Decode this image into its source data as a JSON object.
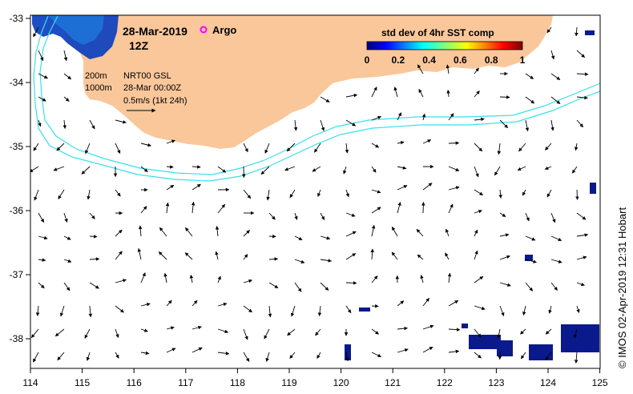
{
  "map": {
    "lon_ticks": [
      "114",
      "115",
      "116",
      "117",
      "118",
      "119",
      "120",
      "121",
      "122",
      "123",
      "124",
      "125"
    ],
    "lat_ticks": [
      "-33",
      "-34",
      "-35",
      "-36",
      "-37",
      "-38"
    ],
    "date_label": "28-Mar-2019",
    "time_label": "12Z",
    "argo_label": "Argo",
    "depth_200": "200m",
    "depth_1000": "1000m",
    "product_label": "NRT00 GSL",
    "product_time": "28-Mar 00:00Z",
    "scale_label": "0.5m/s (1kt 24h)",
    "credit": "© IMOS 02-Apr-2019 12:31 Hobart"
  },
  "colorbar": {
    "title": "std dev of 4hr SST comp",
    "ticks": [
      "0",
      "0.2",
      "0.4",
      "0.6",
      "0.8",
      "1"
    ]
  },
  "colors": {
    "land": "#fac79b",
    "ocean": "#ffffff",
    "isobath": "#38e1ec",
    "sst_low": "#0a1a8c",
    "frame": "#000000"
  }
}
